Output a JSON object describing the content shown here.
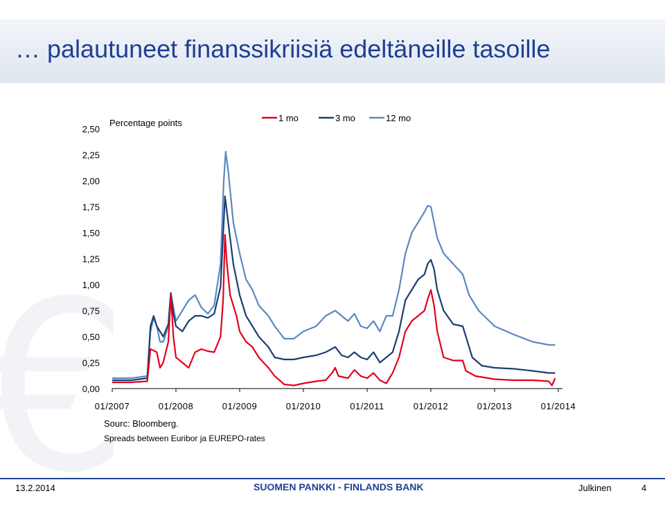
{
  "slide": {
    "title": "… palautuneet finanssikriisiä edeltäneille tasoille",
    "note_source": "Sourc: Bloomberg.",
    "note_description": "Spreads between Euribor ja EUREPO-rates",
    "footer_date": "13.2.2014",
    "footer_center": "SUOMEN PANKKI - FINLANDS BANK",
    "footer_class": "Julkinen",
    "footer_page": "4"
  },
  "colors": {
    "title": "#1f3f94",
    "series_1mo": "#e3001b",
    "series_3mo": "#1b3e70",
    "series_12mo": "#5b88c0"
  },
  "chart_data": {
    "type": "line",
    "unit_label": "Percentage points",
    "y_ticks": [
      "0,00",
      "0,25",
      "0,50",
      "0,75",
      "1,00",
      "1,25",
      "1,50",
      "1,75",
      "2,00",
      "2,25",
      "2,50"
    ],
    "ylim": [
      0,
      2.5
    ],
    "x_ticks": [
      "01/2007",
      "01/2008",
      "01/2009",
      "01/2010",
      "01/2011",
      "01/2012",
      "01/2013",
      "01/2014"
    ],
    "xlim": [
      2007.0,
      2014.0
    ],
    "legend_position": "top-right",
    "grid": false,
    "series": [
      {
        "name": "1 mo",
        "color": "#e3001b",
        "points": [
          [
            2007.0,
            0.06
          ],
          [
            2007.3,
            0.06
          ],
          [
            2007.55,
            0.07
          ],
          [
            2007.6,
            0.38
          ],
          [
            2007.7,
            0.35
          ],
          [
            2007.75,
            0.2
          ],
          [
            2007.8,
            0.25
          ],
          [
            2007.88,
            0.45
          ],
          [
            2007.92,
            0.9
          ],
          [
            2007.96,
            0.5
          ],
          [
            2008.0,
            0.3
          ],
          [
            2008.1,
            0.25
          ],
          [
            2008.2,
            0.2
          ],
          [
            2008.3,
            0.35
          ],
          [
            2008.4,
            0.38
          ],
          [
            2008.5,
            0.36
          ],
          [
            2008.6,
            0.35
          ],
          [
            2008.7,
            0.5
          ],
          [
            2008.74,
            0.85
          ],
          [
            2008.77,
            1.48
          ],
          [
            2008.8,
            1.2
          ],
          [
            2008.85,
            0.9
          ],
          [
            2008.95,
            0.7
          ],
          [
            2009.0,
            0.55
          ],
          [
            2009.1,
            0.45
          ],
          [
            2009.2,
            0.4
          ],
          [
            2009.3,
            0.3
          ],
          [
            2009.45,
            0.2
          ],
          [
            2009.55,
            0.12
          ],
          [
            2009.7,
            0.04
          ],
          [
            2009.85,
            0.03
          ],
          [
            2010.0,
            0.05
          ],
          [
            2010.2,
            0.07
          ],
          [
            2010.35,
            0.08
          ],
          [
            2010.45,
            0.15
          ],
          [
            2010.5,
            0.2
          ],
          [
            2010.55,
            0.12
          ],
          [
            2010.7,
            0.1
          ],
          [
            2010.8,
            0.18
          ],
          [
            2010.9,
            0.12
          ],
          [
            2011.0,
            0.1
          ],
          [
            2011.1,
            0.15
          ],
          [
            2011.2,
            0.08
          ],
          [
            2011.3,
            0.05
          ],
          [
            2011.4,
            0.15
          ],
          [
            2011.5,
            0.3
          ],
          [
            2011.6,
            0.55
          ],
          [
            2011.7,
            0.65
          ],
          [
            2011.8,
            0.7
          ],
          [
            2011.9,
            0.75
          ],
          [
            2011.95,
            0.86
          ],
          [
            2012.0,
            0.95
          ],
          [
            2012.05,
            0.8
          ],
          [
            2012.1,
            0.55
          ],
          [
            2012.2,
            0.3
          ],
          [
            2012.35,
            0.27
          ],
          [
            2012.5,
            0.27
          ],
          [
            2012.55,
            0.17
          ],
          [
            2012.7,
            0.12
          ],
          [
            2012.9,
            0.1
          ],
          [
            2013.0,
            0.09
          ],
          [
            2013.3,
            0.08
          ],
          [
            2013.6,
            0.08
          ],
          [
            2013.85,
            0.07
          ],
          [
            2013.9,
            0.03
          ],
          [
            2013.95,
            0.1
          ]
        ]
      },
      {
        "name": "3 mo",
        "color": "#1b3e70",
        "points": [
          [
            2007.0,
            0.08
          ],
          [
            2007.3,
            0.08
          ],
          [
            2007.55,
            0.1
          ],
          [
            2007.6,
            0.6
          ],
          [
            2007.65,
            0.7
          ],
          [
            2007.7,
            0.6
          ],
          [
            2007.75,
            0.55
          ],
          [
            2007.8,
            0.5
          ],
          [
            2007.88,
            0.62
          ],
          [
            2007.92,
            0.92
          ],
          [
            2007.96,
            0.72
          ],
          [
            2008.0,
            0.6
          ],
          [
            2008.1,
            0.55
          ],
          [
            2008.2,
            0.65
          ],
          [
            2008.3,
            0.7
          ],
          [
            2008.4,
            0.7
          ],
          [
            2008.5,
            0.68
          ],
          [
            2008.6,
            0.72
          ],
          [
            2008.7,
            0.98
          ],
          [
            2008.75,
            1.6
          ],
          [
            2008.77,
            1.85
          ],
          [
            2008.82,
            1.6
          ],
          [
            2008.9,
            1.2
          ],
          [
            2009.0,
            0.9
          ],
          [
            2009.1,
            0.7
          ],
          [
            2009.2,
            0.6
          ],
          [
            2009.3,
            0.5
          ],
          [
            2009.45,
            0.4
          ],
          [
            2009.55,
            0.3
          ],
          [
            2009.7,
            0.28
          ],
          [
            2009.85,
            0.28
          ],
          [
            2010.0,
            0.3
          ],
          [
            2010.2,
            0.32
          ],
          [
            2010.35,
            0.35
          ],
          [
            2010.5,
            0.4
          ],
          [
            2010.6,
            0.32
          ],
          [
            2010.7,
            0.3
          ],
          [
            2010.8,
            0.35
          ],
          [
            2010.9,
            0.3
          ],
          [
            2011.0,
            0.28
          ],
          [
            2011.1,
            0.35
          ],
          [
            2011.2,
            0.25
          ],
          [
            2011.3,
            0.3
          ],
          [
            2011.4,
            0.35
          ],
          [
            2011.5,
            0.55
          ],
          [
            2011.6,
            0.85
          ],
          [
            2011.7,
            0.95
          ],
          [
            2011.8,
            1.05
          ],
          [
            2011.9,
            1.1
          ],
          [
            2011.95,
            1.2
          ],
          [
            2012.0,
            1.24
          ],
          [
            2012.05,
            1.15
          ],
          [
            2012.1,
            0.95
          ],
          [
            2012.2,
            0.75
          ],
          [
            2012.35,
            0.62
          ],
          [
            2012.5,
            0.6
          ],
          [
            2012.55,
            0.5
          ],
          [
            2012.65,
            0.3
          ],
          [
            2012.8,
            0.22
          ],
          [
            2013.0,
            0.2
          ],
          [
            2013.3,
            0.19
          ],
          [
            2013.6,
            0.17
          ],
          [
            2013.85,
            0.15
          ],
          [
            2013.95,
            0.15
          ]
        ]
      },
      {
        "name": "12 mo",
        "color": "#5b88c0",
        "points": [
          [
            2007.0,
            0.1
          ],
          [
            2007.3,
            0.1
          ],
          [
            2007.55,
            0.12
          ],
          [
            2007.6,
            0.55
          ],
          [
            2007.65,
            0.68
          ],
          [
            2007.7,
            0.6
          ],
          [
            2007.75,
            0.45
          ],
          [
            2007.8,
            0.45
          ],
          [
            2007.88,
            0.6
          ],
          [
            2007.92,
            0.92
          ],
          [
            2007.96,
            0.78
          ],
          [
            2008.0,
            0.65
          ],
          [
            2008.1,
            0.75
          ],
          [
            2008.2,
            0.85
          ],
          [
            2008.3,
            0.9
          ],
          [
            2008.4,
            0.78
          ],
          [
            2008.5,
            0.72
          ],
          [
            2008.6,
            0.8
          ],
          [
            2008.7,
            1.2
          ],
          [
            2008.75,
            2.0
          ],
          [
            2008.78,
            2.28
          ],
          [
            2008.82,
            2.1
          ],
          [
            2008.9,
            1.6
          ],
          [
            2009.0,
            1.3
          ],
          [
            2009.1,
            1.05
          ],
          [
            2009.2,
            0.95
          ],
          [
            2009.3,
            0.8
          ],
          [
            2009.45,
            0.7
          ],
          [
            2009.55,
            0.6
          ],
          [
            2009.7,
            0.48
          ],
          [
            2009.85,
            0.48
          ],
          [
            2010.0,
            0.55
          ],
          [
            2010.2,
            0.6
          ],
          [
            2010.35,
            0.7
          ],
          [
            2010.5,
            0.75
          ],
          [
            2010.6,
            0.7
          ],
          [
            2010.7,
            0.65
          ],
          [
            2010.8,
            0.72
          ],
          [
            2010.9,
            0.6
          ],
          [
            2011.0,
            0.58
          ],
          [
            2011.1,
            0.65
          ],
          [
            2011.2,
            0.55
          ],
          [
            2011.3,
            0.7
          ],
          [
            2011.4,
            0.7
          ],
          [
            2011.5,
            0.95
          ],
          [
            2011.6,
            1.3
          ],
          [
            2011.7,
            1.5
          ],
          [
            2011.8,
            1.6
          ],
          [
            2011.9,
            1.7
          ],
          [
            2011.95,
            1.76
          ],
          [
            2012.0,
            1.75
          ],
          [
            2012.05,
            1.6
          ],
          [
            2012.1,
            1.45
          ],
          [
            2012.2,
            1.3
          ],
          [
            2012.35,
            1.2
          ],
          [
            2012.5,
            1.1
          ],
          [
            2012.6,
            0.9
          ],
          [
            2012.75,
            0.75
          ],
          [
            2013.0,
            0.6
          ],
          [
            2013.3,
            0.52
          ],
          [
            2013.6,
            0.45
          ],
          [
            2013.85,
            0.42
          ],
          [
            2013.95,
            0.42
          ]
        ]
      }
    ]
  }
}
